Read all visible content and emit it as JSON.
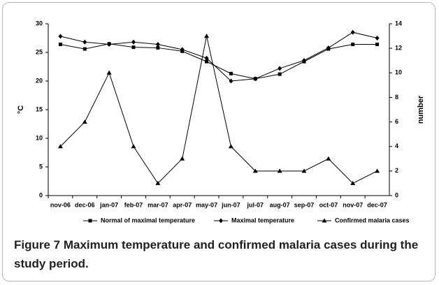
{
  "chart_data": {
    "type": "line",
    "categories": [
      "nov-06",
      "dec-06",
      "jan-07",
      "feb-07",
      "mar-07",
      "apr-07",
      "may-07",
      "jun-07",
      "jul-07",
      "aug-07",
      "sep-07",
      "oct-07",
      "nov-07",
      "dec-07"
    ],
    "series": [
      {
        "name": "Normal of maximal temperature",
        "color": "#000000",
        "marker": "square",
        "values": [
          26.4,
          25.6,
          26.5,
          25.9,
          25.8,
          25.2,
          23.4,
          21.3,
          20.4,
          21.2,
          23.4,
          25.6,
          26.4,
          26.4
        ]
      },
      {
        "name": "Maximal temperature",
        "color": "#000000",
        "marker": "diamond",
        "values": [
          27.8,
          26.8,
          26.4,
          26.8,
          26.4,
          25.5,
          24.0,
          20.0,
          20.4,
          22.2,
          23.6,
          25.8,
          28.5,
          27.5
        ]
      },
      {
        "name": "Confirmed malaria cases",
        "color": "#000000",
        "marker": "triangle",
        "axis": "y2",
        "values": [
          4,
          6,
          10,
          4,
          1,
          3,
          13,
          4,
          2,
          2,
          2,
          3,
          1,
          2
        ]
      }
    ],
    "ylabel": "°C",
    "y2label": "number",
    "ylim": [
      0,
      30
    ],
    "yticks": [
      0,
      5,
      10,
      15,
      20,
      25,
      30
    ],
    "y2lim": [
      0,
      14
    ],
    "y2ticks": [
      0,
      2,
      4,
      6,
      8,
      10,
      12,
      14
    ],
    "legend": "bottom"
  },
  "caption": {
    "label": "Figure 7",
    "text": "Maximum temperature and confirmed malaria cases during the study period."
  }
}
